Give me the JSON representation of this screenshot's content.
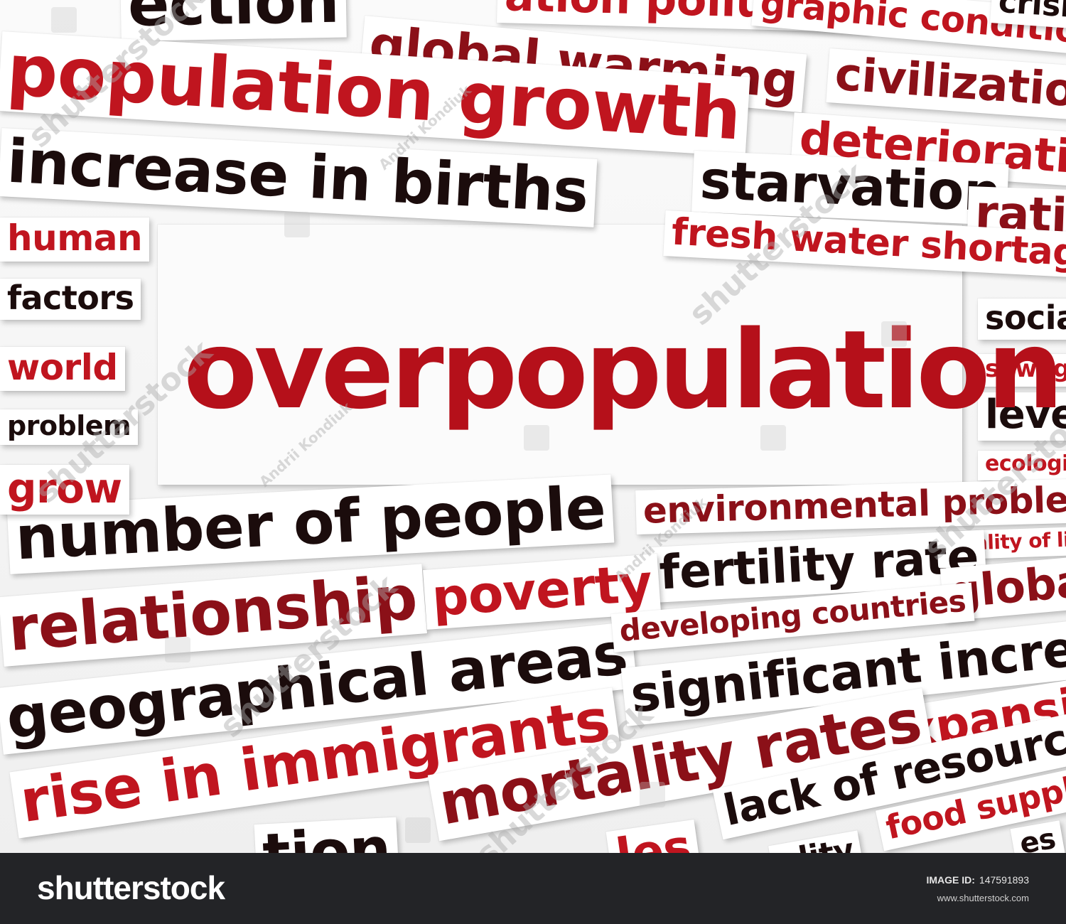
{
  "words": [
    {
      "id": "word-protection-partial",
      "text": "ection",
      "color": "#1b0c0c"
    },
    {
      "id": "word-pollution-partial",
      "text": "ation pollution",
      "color": "#c0151f"
    },
    {
      "id": "word-demographic-partial",
      "text": "graphic conditions",
      "color": "#c0151f"
    },
    {
      "id": "word-crisis-partial",
      "text": "crisis",
      "color": "#1b0c0c"
    },
    {
      "id": "word-population-growth",
      "text": "population growth",
      "color": "#c0151f"
    },
    {
      "id": "word-global-warming",
      "text": "global warming",
      "color": "#8b1018"
    },
    {
      "id": "word-civilization",
      "text": "civilization",
      "color": "#8b1018"
    },
    {
      "id": "word-deterioration",
      "text": "deterioration",
      "color": "#c0151f"
    },
    {
      "id": "word-increase-in-births",
      "text": "increase in births",
      "color": "#1b0c0c"
    },
    {
      "id": "word-starvation",
      "text": "starvation",
      "color": "#1b0c0c"
    },
    {
      "id": "word-ratio",
      "text": "ratio",
      "color": "#8b1018"
    },
    {
      "id": "word-fresh-water-shortages",
      "text": "fresh water shortages",
      "color": "#c0151f"
    },
    {
      "id": "word-human",
      "text": "human",
      "color": "#c0151f"
    },
    {
      "id": "word-factors",
      "text": "factors",
      "color": "#1b0c0c"
    },
    {
      "id": "word-world",
      "text": "world",
      "color": "#c0151f"
    },
    {
      "id": "word-problem",
      "text": "problem",
      "color": "#1b0c0c"
    },
    {
      "id": "word-grow",
      "text": "grow",
      "color": "#c0151f"
    },
    {
      "id": "word-overpopulation",
      "text": "overpopulation",
      "color": "#b5101a"
    },
    {
      "id": "word-social",
      "text": "social",
      "color": "#1b0c0c"
    },
    {
      "id": "word-sewage",
      "text": "sewage",
      "color": "#c0151f"
    },
    {
      "id": "word-level",
      "text": "level",
      "color": "#1b0c0c"
    },
    {
      "id": "word-ecological",
      "text": "ecological",
      "color": "#c0151f"
    },
    {
      "id": "word-environmental-problems",
      "text": "environmental problems",
      "color": "#8b1018"
    },
    {
      "id": "word-quality-of-life",
      "text": "quality of life",
      "color": "#c0151f"
    },
    {
      "id": "word-number-of-people",
      "text": "number of people",
      "color": "#1b0c0c"
    },
    {
      "id": "word-fertility-rate",
      "text": "fertility rate",
      "color": "#1b0c0c"
    },
    {
      "id": "word-global",
      "text": "global",
      "color": "#8b1018"
    },
    {
      "id": "word-poverty",
      "text": "poverty",
      "color": "#c0151f"
    },
    {
      "id": "word-relationship",
      "text": "relationship",
      "color": "#8b1018"
    },
    {
      "id": "word-developing-countries",
      "text": "developing countries",
      "color": "#8b1018"
    },
    {
      "id": "word-significant-increase",
      "text": "significant increase",
      "color": "#1b0c0c"
    },
    {
      "id": "word-geographical-areas",
      "text": "geographical areas",
      "color": "#1b0c0c"
    },
    {
      "id": "word-expansion",
      "text": "expansion",
      "color": "#c0151f"
    },
    {
      "id": "word-mortality-rates",
      "text": "mortality rates",
      "color": "#8b1018"
    },
    {
      "id": "word-rise-in-immigrants",
      "text": "rise in immigrants",
      "color": "#c0151f"
    },
    {
      "id": "word-lack-of-resources",
      "text": "lack of resources",
      "color": "#1b0c0c"
    },
    {
      "id": "word-food-supply",
      "text": "food supply",
      "color": "#c0151f"
    },
    {
      "id": "word-bottom-partial-1",
      "text": "tion",
      "color": "#1b0c0c"
    },
    {
      "id": "word-bottom-partial-2",
      "text": "les",
      "color": "#c0151f"
    },
    {
      "id": "word-bottom-partial-3",
      "text": "ality",
      "color": "#1b0c0c"
    },
    {
      "id": "word-bottom-partial-4",
      "text": "es",
      "color": "#1b0c0c"
    }
  ],
  "watermark": {
    "text": "shutterstock",
    "author": "Andrii Kondiuk"
  },
  "footer": {
    "brand": "shutterstock",
    "image_id_label": "IMAGE ID:",
    "image_id_value": "147591893",
    "site": "www.shutterstock.com"
  }
}
